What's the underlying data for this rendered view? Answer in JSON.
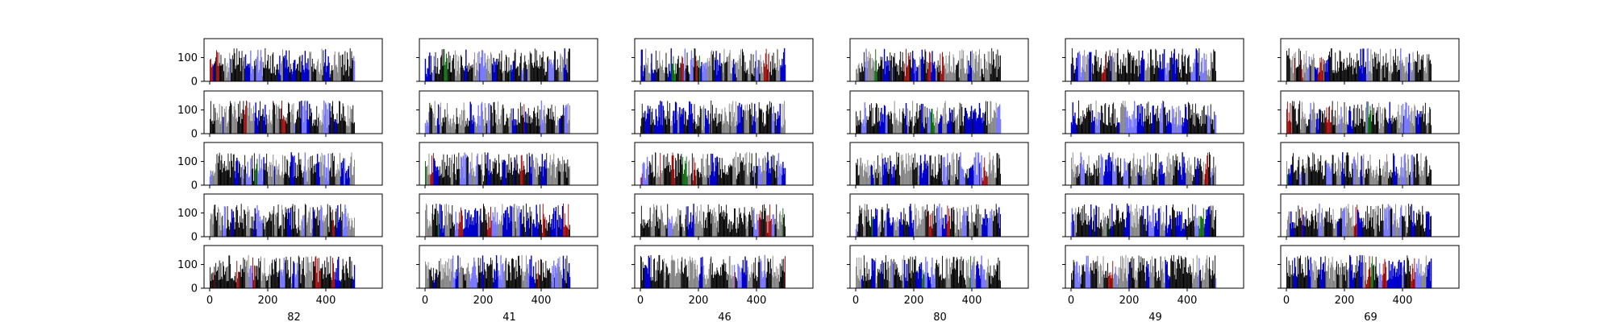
{
  "chart_data": {
    "type": "bar",
    "layout": {
      "rows": 5,
      "cols": 6
    },
    "bars_per_panel": 200,
    "x_range": [
      0,
      500
    ],
    "x_ticks": [
      0,
      200,
      400
    ],
    "y_range": [
      0,
      180
    ],
    "y_ticks": [
      0,
      100
    ],
    "value_range_typical": [
      30,
      140
    ],
    "bar_colors": [
      "#000000",
      "#808080",
      "#0000cc",
      "#7b7bff",
      "#990000",
      "#006400"
    ],
    "column_labels": [
      "82",
      "41",
      "46",
      "80",
      "49",
      "69"
    ],
    "grid": false,
    "legend": "none"
  }
}
